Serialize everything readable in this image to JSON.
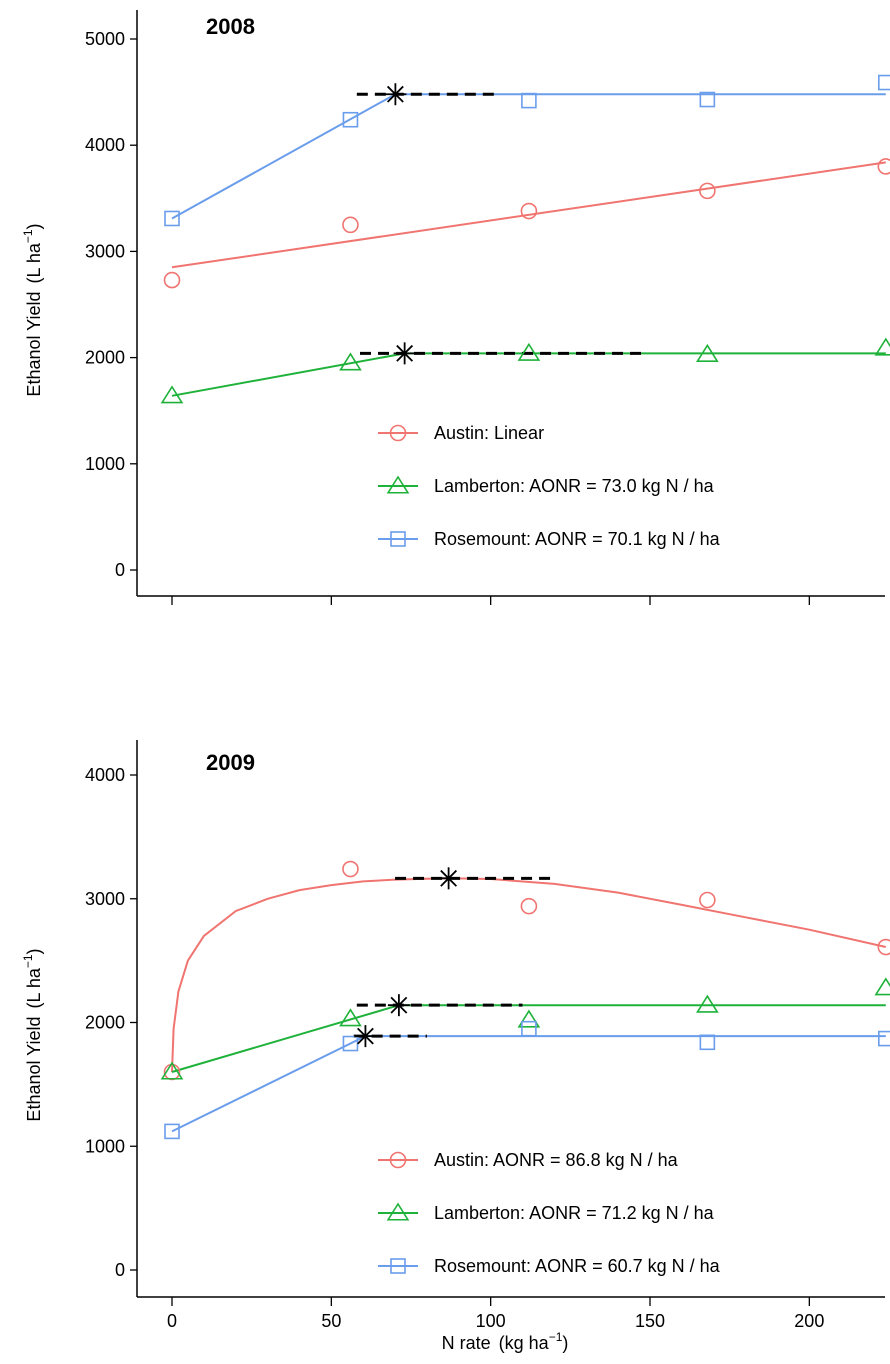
{
  "chart_data": [
    {
      "type": "line",
      "title": "2008",
      "xlabel": "N rate",
      "xlabel_units": "(kg ha",
      "xlabel_sup": "−1",
      "ylabel": "Ethanol Yield",
      "ylabel_units": "(L ha",
      "ylabel_sup": "−1",
      "xlim": [
        0,
        225
      ],
      "ylim": [
        0,
        5000
      ],
      "x_ticks": [
        0,
        50,
        100,
        150,
        200
      ],
      "x_tick_labels_shown": false,
      "y_ticks": [
        0,
        1000,
        2000,
        3000,
        4000,
        5000
      ],
      "grid": false,
      "legend_position": "lower-right",
      "series": [
        {
          "name": "Austin: Linear",
          "color": "#F07470",
          "marker": "circle",
          "x": [
            0,
            56,
            112,
            168,
            224
          ],
          "y": [
            2730,
            3250,
            3380,
            3570,
            3800
          ],
          "fit": {
            "kind": "linear",
            "intercept": 2850,
            "slope": 4.41
          }
        },
        {
          "name": "Lamberton: AONR = 73.0 kg N / ha",
          "color": "#1FB23A",
          "marker": "triangle",
          "x": [
            0,
            56,
            112,
            168,
            224
          ],
          "y": [
            1640,
            1950,
            2040,
            2030,
            2090
          ],
          "fit": {
            "kind": "linear-plateau",
            "intercept": 1640,
            "aonr": 73.0,
            "plateau": 2040
          },
          "aonr_band": [
            59,
            149
          ]
        },
        {
          "name": "Rosemount: AONR = 70.1 kg N / ha",
          "color": "#6A9DEB",
          "marker": "square",
          "x": [
            0,
            56,
            112,
            168,
            224
          ],
          "y": [
            3310,
            4240,
            4420,
            4430,
            4590
          ],
          "fit": {
            "kind": "linear-plateau",
            "intercept": 3310,
            "aonr": 70.1,
            "plateau": 4480
          },
          "aonr_band": [
            58,
            102
          ]
        }
      ]
    },
    {
      "type": "line",
      "title": "2009",
      "xlabel": "N rate",
      "xlabel_units": "(kg ha",
      "xlabel_sup": "−1",
      "ylabel": "Ethanol Yield",
      "ylabel_units": "(L ha",
      "ylabel_sup": "−1",
      "xlim": [
        0,
        225
      ],
      "ylim": [
        0,
        4000
      ],
      "x_ticks": [
        0,
        50,
        100,
        150,
        200
      ],
      "x_tick_labels_shown": true,
      "y_ticks": [
        0,
        1000,
        2000,
        3000,
        4000
      ],
      "grid": false,
      "legend_position": "lower-right",
      "series": [
        {
          "name": "Austin: AONR = 86.8 kg N / ha",
          "color": "#F07470",
          "marker": "circle",
          "x": [
            0,
            56,
            112,
            168,
            224
          ],
          "y": [
            1600,
            3240,
            2940,
            2990,
            2610
          ],
          "fit": {
            "kind": "curve",
            "x": [
              0,
              0.5,
              2,
              5,
              10,
              20,
              30,
              40,
              50,
              60,
              70,
              80,
              86.8,
              100,
              120,
              140,
              160,
              180,
              200,
              224
            ],
            "y": [
              1600,
              1950,
              2250,
              2500,
              2700,
              2900,
              3000,
              3070,
              3110,
              3140,
              3155,
              3162,
              3165,
              3160,
              3120,
              3050,
              2950,
              2850,
              2750,
              2610
            ]
          },
          "aonr_point": [
            86.8,
            3165
          ],
          "aonr_band": [
            70,
            120
          ]
        },
        {
          "name": "Lamberton: AONR = 71.2 kg N / ha",
          "color": "#1FB23A",
          "marker": "triangle",
          "x": [
            0,
            56,
            112,
            168,
            224
          ],
          "y": [
            1600,
            2030,
            2020,
            2140,
            2280
          ],
          "fit": {
            "kind": "linear-plateau",
            "intercept": 1600,
            "aonr": 71.2,
            "plateau": 2140
          },
          "aonr_band": [
            58,
            110
          ]
        },
        {
          "name": "Rosemount: AONR = 60.7 kg N / ha",
          "color": "#6A9DEB",
          "marker": "square",
          "x": [
            0,
            56,
            112,
            168,
            224
          ],
          "y": [
            1120,
            1830,
            1950,
            1840,
            1870
          ],
          "fit": {
            "kind": "linear-plateau",
            "intercept": 1120,
            "aonr": 60.7,
            "plateau": 1890
          },
          "aonr_band": [
            57,
            80
          ]
        }
      ]
    }
  ]
}
